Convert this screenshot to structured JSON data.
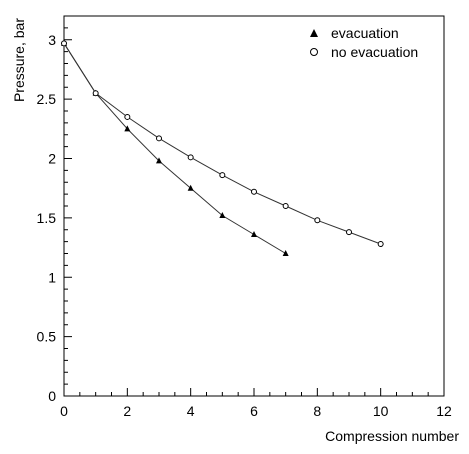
{
  "chart_data": {
    "type": "line",
    "title": "",
    "xlabel": "Compression number",
    "ylabel": "Pressure, bar",
    "xlim": [
      0,
      12
    ],
    "ylim": [
      0,
      3.2
    ],
    "x_major_ticks": [
      0,
      2,
      4,
      6,
      8,
      10,
      12
    ],
    "x_tick_labels": [
      "0",
      "2",
      "4",
      "6",
      "8",
      "10",
      "12"
    ],
    "x_minor_step": 0.5,
    "y_major_ticks": [
      0,
      0.5,
      1,
      1.5,
      2,
      2.5,
      3
    ],
    "y_tick_labels": [
      "0",
      "0.5",
      "1",
      "1.5",
      "2",
      "2.5",
      "3"
    ],
    "y_minor_step": 0.1,
    "grid": false,
    "legend_position": "top-right",
    "series": [
      {
        "name": "evacuation",
        "marker": "filled-triangle",
        "color": "#000000",
        "x": [
          0,
          1,
          2,
          3,
          4,
          5,
          6,
          7
        ],
        "y": [
          2.97,
          2.55,
          2.25,
          1.98,
          1.75,
          1.52,
          1.36,
          1.2
        ]
      },
      {
        "name": "no evacuation",
        "marker": "open-circle",
        "color": "#000000",
        "x": [
          0,
          1,
          2,
          3,
          4,
          5,
          6,
          7,
          8,
          9,
          10
        ],
        "y": [
          2.97,
          2.55,
          2.35,
          2.17,
          2.01,
          1.86,
          1.72,
          1.6,
          1.48,
          1.38,
          1.28
        ]
      }
    ]
  }
}
